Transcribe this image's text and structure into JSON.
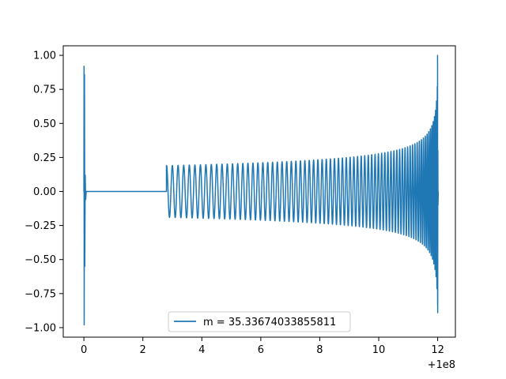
{
  "chart_data": {
    "type": "line",
    "title": "",
    "xlabel": "",
    "ylabel": "",
    "x_offset_label": "+1e8",
    "xlim": [
      -0.7,
      12.6
    ],
    "ylim": [
      -1.07,
      1.07
    ],
    "xticks": [
      0,
      2,
      4,
      6,
      8,
      10,
      12
    ],
    "xtick_labels": [
      "0",
      "2",
      "4",
      "6",
      "8",
      "10",
      "12"
    ],
    "yticks": [
      -1.0,
      -0.75,
      -0.5,
      -0.25,
      0.0,
      0.25,
      0.5,
      0.75,
      1.0
    ],
    "ytick_labels": [
      "−1.00",
      "−0.75",
      "−0.50",
      "−0.25",
      "0.00",
      "0.25",
      "0.50",
      "0.75",
      "1.00"
    ],
    "grid": false,
    "legend_position": "lower center",
    "series": [
      {
        "name": "m = 35.33674033855811",
        "color": "#1f77b4",
        "description_points": {
          "initial_spike": {
            "x": 0.0,
            "y_max": 0.92,
            "y_min": -0.98
          },
          "flat_segment": {
            "x_start": 0.1,
            "x_end": 2.8,
            "y": 0.0
          },
          "oscillation_start": {
            "x": 2.8,
            "amplitude": 0.19
          },
          "oscillation_mid": {
            "x": 8.0,
            "amplitude": 0.21
          },
          "oscillation_late": {
            "x": 10.0,
            "amplitude": 0.25
          },
          "final_peak": {
            "x": 12.0,
            "y_max": 1.0,
            "y_min": -0.89
          }
        }
      }
    ]
  }
}
